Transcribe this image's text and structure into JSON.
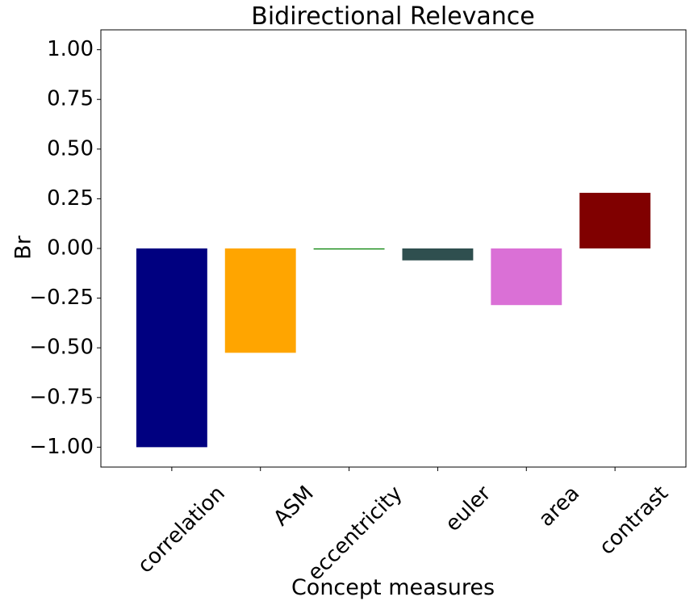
{
  "chart_data": {
    "type": "bar",
    "title": "Bidirectional Relevance",
    "xlabel": "Concept measures",
    "ylabel": "Br",
    "categories": [
      "correlation",
      "ASM",
      "eccentricity",
      "euler",
      "area",
      "contrast"
    ],
    "values": [
      -1.0,
      -0.525,
      -0.005,
      -0.06,
      -0.285,
      0.28
    ],
    "colors": [
      "#000080",
      "#ffa500",
      "#008000",
      "#2f4f4f",
      "#da70d6",
      "#800000"
    ],
    "ylim": [
      -1.1,
      1.1
    ],
    "yticks": [
      -1.0,
      -0.75,
      -0.5,
      -0.25,
      0.0,
      0.25,
      0.5,
      0.75,
      1.0
    ],
    "ytick_labels": [
      "−1.00",
      "−0.75",
      "−0.50",
      "−0.25",
      "0.00",
      "0.25",
      "0.50",
      "0.75",
      "1.00"
    ],
    "grid": false,
    "legend": false
  }
}
